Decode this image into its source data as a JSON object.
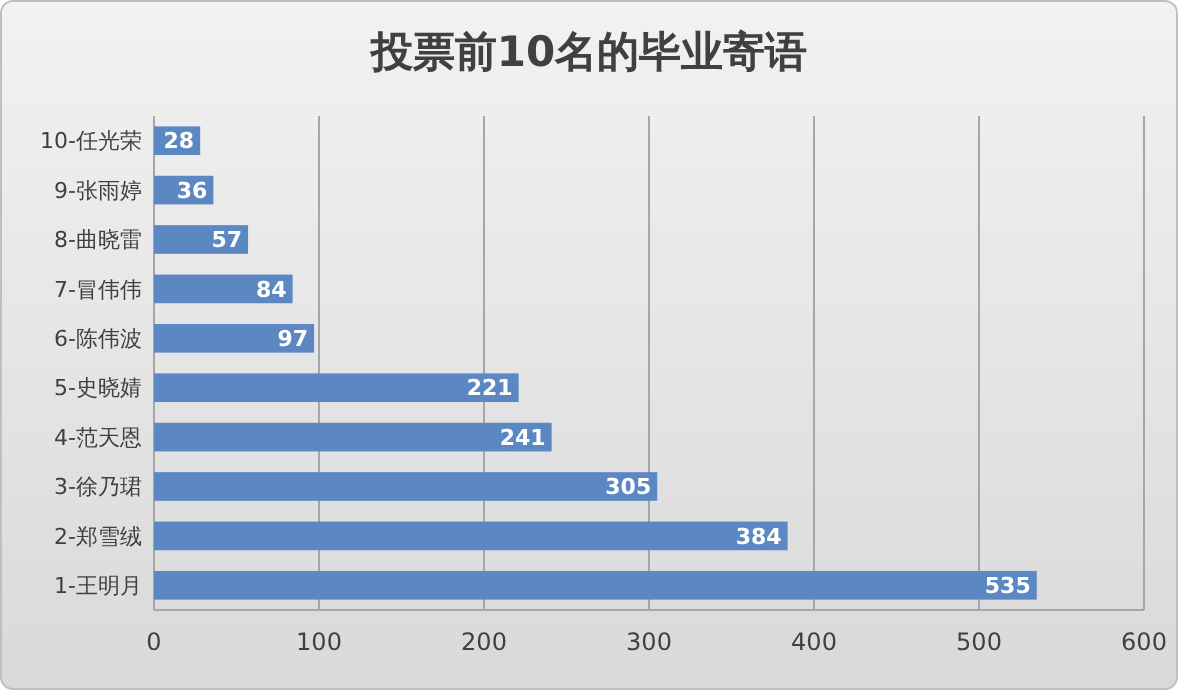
{
  "chart_data": {
    "type": "bar",
    "orientation": "horizontal",
    "title": "投票前10名的毕业寄语",
    "categories": [
      "10-任光荣",
      "9-张雨婷",
      "8-曲晓雷",
      "7-冒伟伟",
      "6-陈伟波",
      "5-史晓婧",
      "4-范天恩",
      "3-徐乃珺",
      "2-郑雪绒",
      "1-王明月"
    ],
    "values": [
      28,
      36,
      57,
      84,
      97,
      221,
      241,
      305,
      384,
      535
    ],
    "color": "#5b87c3",
    "xlim": [
      0,
      600
    ],
    "xticks": [
      0,
      100,
      200,
      300,
      400,
      500,
      600
    ],
    "grid": "x",
    "data_labels": true
  }
}
